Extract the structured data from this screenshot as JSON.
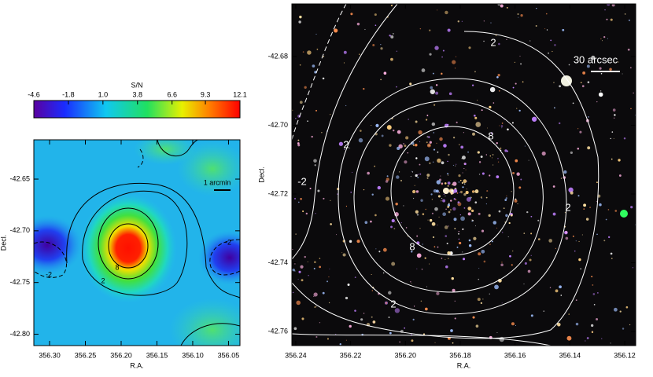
{
  "chart_data": [
    {
      "type": "heatmap",
      "colorbar_label": "S/N",
      "colorbar_lim": [
        -4.6,
        12.1
      ],
      "colorbar_ticks": [
        -4.6,
        -1.8,
        {
          "value": 1,
          "label": "1.0"
        },
        3.8,
        6.6,
        9.3,
        12.1
      ],
      "xlabel": "R.A.",
      "ylabel": "Decl.",
      "xlim": [
        356.322,
        356.034
      ],
      "ylim": [
        -42.811,
        -42.612
      ],
      "xticks": [
        {
          "value": 356.3,
          "label": "356.30"
        },
        356.25,
        {
          "value": 356.2,
          "label": "356.20"
        },
        356.15,
        {
          "value": 356.1,
          "label": "356.10"
        },
        356.05
      ],
      "yticks": [
        -42.65,
        {
          "value": -42.7,
          "label": "-42.70"
        },
        -42.75,
        {
          "value": -42.8,
          "label": "-42.80"
        }
      ],
      "scale_bar": "1 arcmin",
      "contour_labels": [
        "-2",
        "2",
        "8",
        "-2"
      ]
    },
    {
      "type": "image",
      "xlabel": "R.A.",
      "ylabel": "Decl.",
      "xlim": [
        356.2414,
        356.116
      ],
      "ylim": [
        -42.7641,
        -42.6647
      ],
      "xticks": [
        356.24,
        356.22,
        {
          "value": 356.2,
          "label": "356.20"
        },
        356.18,
        356.16,
        356.14,
        356.12
      ],
      "yticks": [
        -42.68,
        {
          "value": -42.7,
          "label": "-42.70"
        },
        -42.72,
        -42.74,
        -42.76
      ],
      "scale_bar": "30 arcsec",
      "contour_labels": [
        "2",
        "2",
        "2",
        "8",
        "8",
        "-2",
        "2"
      ]
    }
  ]
}
